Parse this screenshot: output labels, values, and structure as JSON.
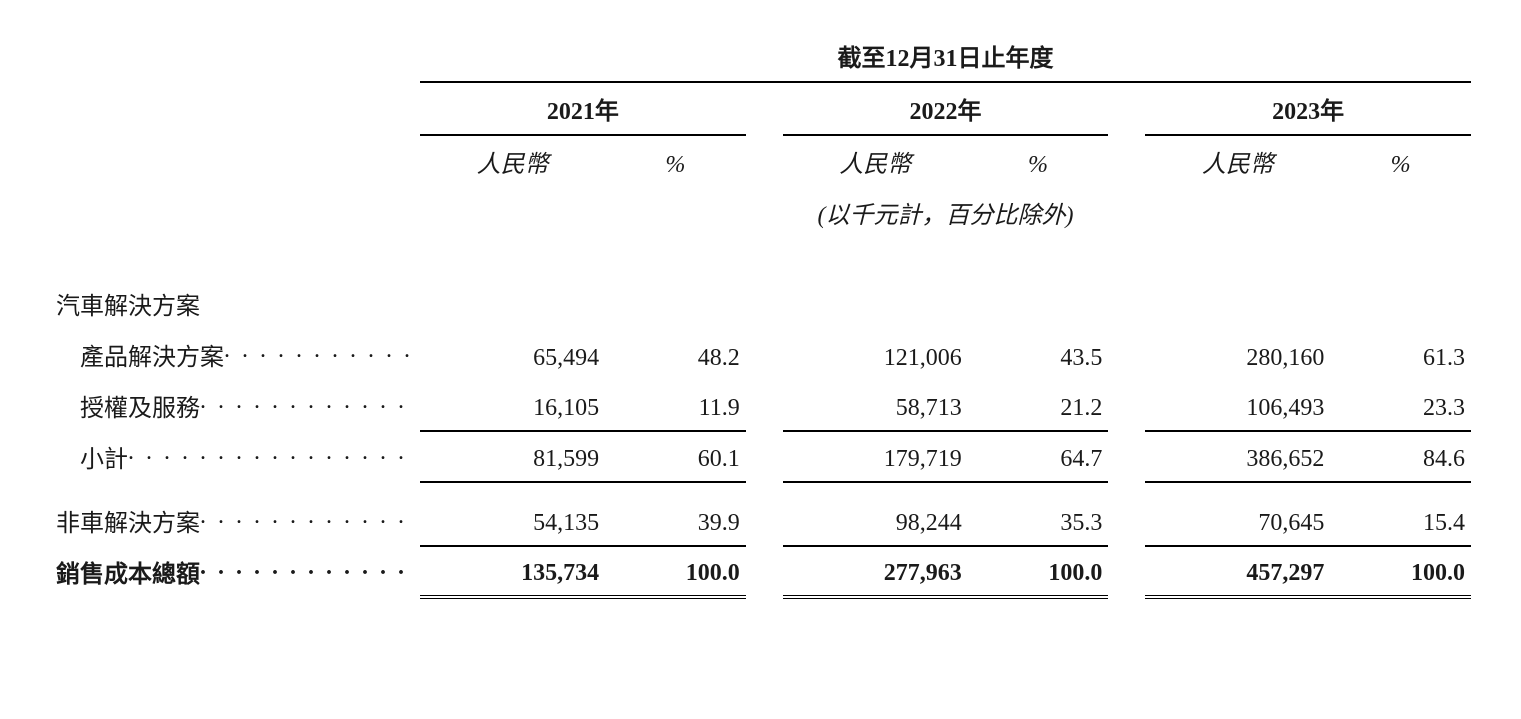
{
  "header": {
    "title": "截至12月31日止年度",
    "years": [
      "2021年",
      "2022年",
      "2023年"
    ],
    "sub_rmb": "人民幣",
    "sub_pct": "%",
    "unit_note": "(以千元計，百分比除外)"
  },
  "rows": [
    {
      "label": "汽車解決方案",
      "type": "section"
    },
    {
      "label": "產品解決方案",
      "type": "data",
      "indent": 1,
      "underline": false,
      "v": [
        "65,494",
        "48.2",
        "121,006",
        "43.5",
        "280,160",
        "61.3"
      ]
    },
    {
      "label": "授權及服務",
      "type": "data",
      "indent": 1,
      "underline": true,
      "v": [
        "16,105",
        "11.9",
        "58,713",
        "21.2",
        "106,493",
        "23.3"
      ]
    },
    {
      "label": "小計",
      "type": "subtotal",
      "indent": 1,
      "underline": true,
      "v": [
        "81,599",
        "60.1",
        "179,719",
        "64.7",
        "386,652",
        "84.6"
      ]
    },
    {
      "label": "非車解決方案",
      "type": "data",
      "indent": 0,
      "underline": true,
      "v": [
        "54,135",
        "39.9",
        "98,244",
        "35.3",
        "70,645",
        "15.4"
      ]
    },
    {
      "label": "銷售成本總額",
      "type": "total",
      "indent": 0,
      "v": [
        "135,734",
        "100.0",
        "277,963",
        "100.0",
        "457,297",
        "100.0"
      ]
    }
  ],
  "dots": ". . . . . . . . . . . . . . . . . . . ."
}
